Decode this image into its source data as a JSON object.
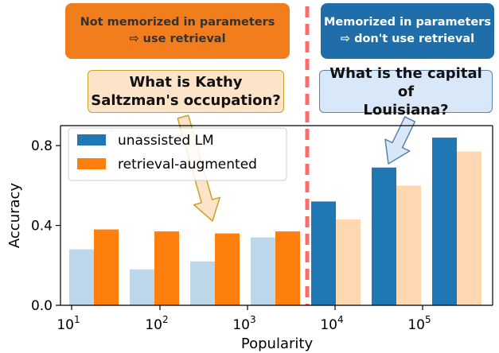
{
  "annotations": {
    "left_banner": [
      "Not memorized in parameters",
      "⇨ use retrieval"
    ],
    "right_banner": [
      "Memorized in parameters",
      "⇨ don't use retrieval"
    ],
    "left_question": [
      "What is Kathy",
      "Saltzman's occupation?"
    ],
    "right_question": [
      "What is the capital of",
      "Louisiana?"
    ]
  },
  "colors": {
    "unassisted": "#1f77b4",
    "unassisted_faded": "#bdd7ea",
    "retrieval": "#ff7f0e",
    "retrieval_faded": "#ffd8b1",
    "divider": "#ff6b6b"
  },
  "chart_data": {
    "type": "bar",
    "xlabel": "Popularity",
    "ylabel": "Accuracy",
    "ylim": [
      0,
      0.9
    ],
    "yticks": [
      "0.0",
      "0.4",
      "0.8"
    ],
    "xticks": [
      {
        "base": "10",
        "exp": "1"
      },
      {
        "base": "10",
        "exp": "2"
      },
      {
        "base": "10",
        "exp": "3"
      },
      {
        "base": "10",
        "exp": "4"
      },
      {
        "base": "10",
        "exp": "5"
      }
    ],
    "legend_position": "top-left",
    "series": [
      {
        "name": "unassisted LM",
        "values": [
          0.28,
          0.18,
          0.22,
          0.34,
          0.52,
          0.69,
          0.84
        ],
        "faded": [
          true,
          true,
          true,
          true,
          false,
          false,
          false
        ]
      },
      {
        "name": "retrieval-augmented",
        "values": [
          0.38,
          0.37,
          0.36,
          0.37,
          0.43,
          0.6,
          0.77
        ],
        "faded": [
          false,
          false,
          false,
          false,
          true,
          true,
          true
        ]
      }
    ]
  }
}
